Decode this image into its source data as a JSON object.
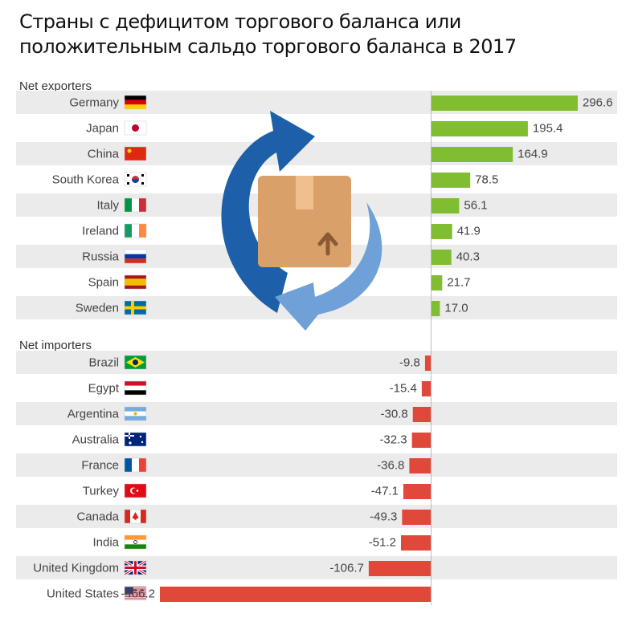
{
  "title": "Страны с дефицитом торгового баланса или положительным сальдо торгового баланса в 2017",
  "colors": {
    "positive": "#80bd31",
    "negative": "#e0483a",
    "stripe": "#ebebeb",
    "axis": "#bbbbbb",
    "text": "#444444"
  },
  "chart_data": {
    "type": "bar",
    "orientation": "horizontal",
    "groups": [
      {
        "label": "Net exporters",
        "items": [
          {
            "country": "Germany",
            "flag": "germany-flag",
            "value": 296.6,
            "value_label": "296.6"
          },
          {
            "country": "Japan",
            "flag": "japan-flag",
            "value": 195.4,
            "value_label": "195.4"
          },
          {
            "country": "China",
            "flag": "china-flag",
            "value": 164.9,
            "value_label": "164.9"
          },
          {
            "country": "South Korea",
            "flag": "south-korea-flag",
            "value": 78.5,
            "value_label": "78.5"
          },
          {
            "country": "Italy",
            "flag": "italy-flag",
            "value": 56.1,
            "value_label": "56.1"
          },
          {
            "country": "Ireland",
            "flag": "ireland-flag",
            "value": 41.9,
            "value_label": "41.9"
          },
          {
            "country": "Russia",
            "flag": "russia-flag",
            "value": 40.3,
            "value_label": "40.3"
          },
          {
            "country": "Spain",
            "flag": "spain-flag",
            "value": 21.7,
            "value_label": "21.7"
          },
          {
            "country": "Sweden",
            "flag": "sweden-flag",
            "value": 17.0,
            "value_label": "17.0"
          }
        ]
      },
      {
        "label": "Net importers",
        "items": [
          {
            "country": "Brazil",
            "flag": "brazil-flag",
            "value": -9.8,
            "value_label": "-9.8"
          },
          {
            "country": "Egypt",
            "flag": "egypt-flag",
            "value": -15.4,
            "value_label": "-15.4"
          },
          {
            "country": "Argentina",
            "flag": "argentina-flag",
            "value": -30.8,
            "value_label": "-30.8"
          },
          {
            "country": "Australia",
            "flag": "australia-flag",
            "value": -32.3,
            "value_label": "-32.3"
          },
          {
            "country": "France",
            "flag": "france-flag",
            "value": -36.8,
            "value_label": "-36.8"
          },
          {
            "country": "Turkey",
            "flag": "turkey-flag",
            "value": -47.1,
            "value_label": "-47.1"
          },
          {
            "country": "Canada",
            "flag": "canada-flag",
            "value": -49.3,
            "value_label": "-49.3"
          },
          {
            "country": "India",
            "flag": "india-flag",
            "value": -51.2,
            "value_label": "-51.2"
          },
          {
            "country": "United Kingdom",
            "flag": "uk-flag",
            "value": -106.7,
            "value_label": "-106.7"
          },
          {
            "country": "United States",
            "flag": "usa-flag",
            "value": -466.2,
            "value_label": "-466.2"
          }
        ]
      }
    ],
    "xlim": [
      -466.2,
      296.6
    ],
    "grid": false,
    "legend": "none"
  },
  "decoration": {
    "icon": "package-exchange-icon"
  }
}
